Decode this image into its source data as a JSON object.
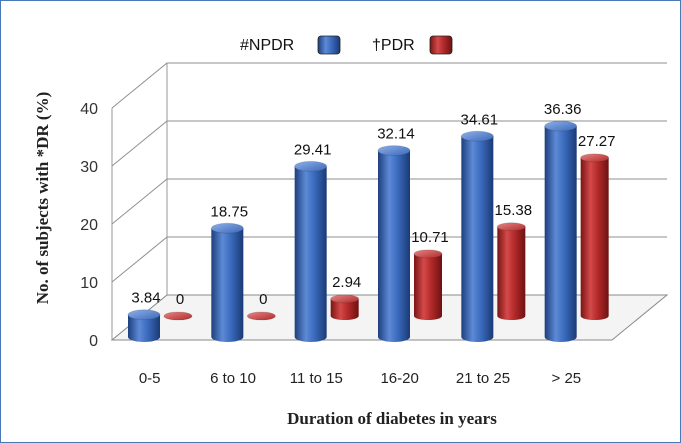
{
  "chart_data": {
    "type": "bar",
    "title": "",
    "xlabel": "Duration of diabetes in years",
    "ylabel": "No. of subjects with *DR (%)",
    "ylim": [
      0,
      40
    ],
    "yticks": [
      "0",
      "10",
      "20",
      "30",
      "40"
    ],
    "grid": true,
    "legend_position": "top",
    "categories": [
      "0-5",
      "6 to 10",
      "11 to 15",
      "16-20",
      "21 to 25",
      "> 25"
    ],
    "series": [
      {
        "name": "#NPDR",
        "color": "#2f5fae",
        "values": [
          3.84,
          18.75,
          29.41,
          32.14,
          34.61,
          36.36
        ],
        "labels": [
          "3.84",
          "18.75",
          "29.41",
          "32.14",
          "34.61",
          "36.36"
        ]
      },
      {
        "name": "†PDR",
        "color": "#b22a2a",
        "values": [
          0,
          0,
          2.94,
          10.71,
          15.38,
          27.27
        ],
        "labels": [
          "0",
          "0",
          "2.94",
          "10.71",
          "15.38",
          "27.27"
        ]
      }
    ]
  }
}
